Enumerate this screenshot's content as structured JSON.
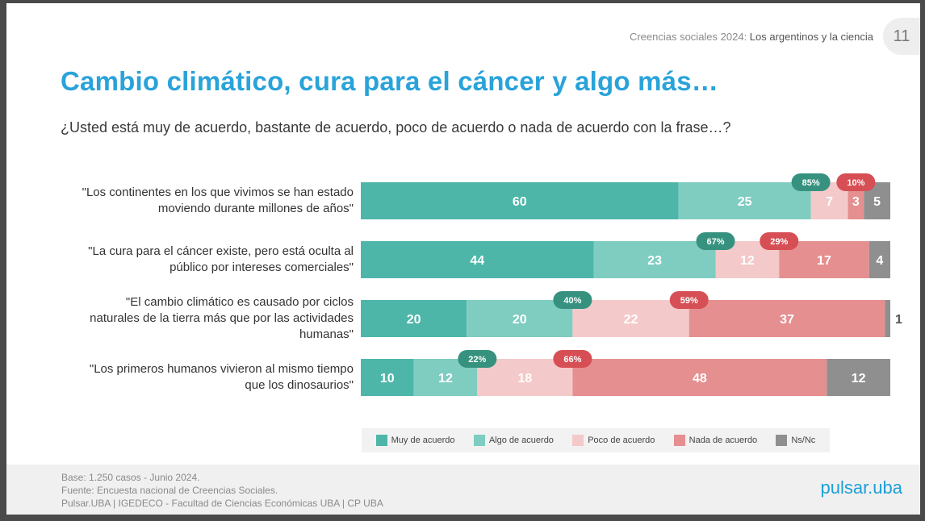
{
  "header": {
    "source_prefix": "Creencias sociales 2024: ",
    "source_title": "Los argentinos y la ciencia",
    "page_number": "11"
  },
  "title": "Cambio climático, cura para el cáncer y algo más…",
  "subtitle": "¿Usted está muy de acuerdo, bastante de acuerdo, poco de acuerdo o nada de acuerdo con la frase…?",
  "colors": {
    "muy": "#4db6a9",
    "algo": "#7fccc1",
    "poco": "#f4c9c9",
    "nada": "#e58f90",
    "nsnc": "#8f8f8f",
    "badge_agree": "#36927f",
    "badge_disagree": "#d64f55"
  },
  "chart_data": {
    "type": "bar",
    "orientation": "horizontal",
    "stacked": true,
    "categories": [
      "\"Los continentes en los que vivimos se han estado moviendo durante millones de años\"",
      "\"La cura para el cáncer existe, pero está oculta al público por intereses comerciales\"",
      "\"El cambio climático es causado por ciclos naturales de la tierra más que por las actividades humanas\"",
      "\"Los primeros humanos vivieron al mismo tiempo que los dinosaurios\""
    ],
    "category_lines": [
      [
        "\"Los continentes en los que vivimos se han estado",
        "moviendo durante millones de años\""
      ],
      [
        "\"La cura para el cáncer existe, pero está oculta al",
        "público por intereses comerciales\""
      ],
      [
        "\"El cambio climático es causado por ciclos",
        "naturales de la tierra más que por las actividades",
        "humanas\""
      ],
      [
        "\"Los primeros humanos vivieron al mismo tiempo",
        "que los dinosaurios\""
      ]
    ],
    "series": [
      {
        "name": "Muy de acuerdo",
        "values": [
          60,
          44,
          20,
          10
        ]
      },
      {
        "name": "Algo de acuerdo",
        "values": [
          25,
          23,
          20,
          12
        ]
      },
      {
        "name": "Poco de acuerdo",
        "values": [
          7,
          12,
          22,
          18
        ]
      },
      {
        "name": "Nada de acuerdo",
        "values": [
          3,
          17,
          37,
          48
        ]
      },
      {
        "name": "Ns/Nc",
        "values": [
          5,
          4,
          1,
          12
        ]
      }
    ],
    "agree_totals": [
      "85%",
      "67%",
      "40%",
      "22%"
    ],
    "disagree_totals": [
      "10%",
      "29%",
      "59%",
      "66%"
    ],
    "legend_position": "bottom"
  },
  "footer": {
    "lines": [
      "Base: 1.250 casos - Junio 2024.",
      "Fuente: Encuesta nacional de Creencias Sociales.",
      "Pulsar.UBA | IGEDECO - Facultad de Ciencias Económicas UBA | CP UBA"
    ],
    "logo": "pulsar.uba"
  }
}
